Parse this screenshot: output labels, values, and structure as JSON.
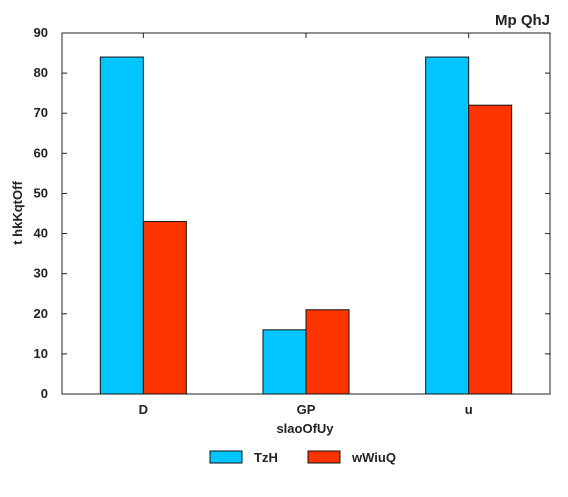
{
  "chart_data": {
    "type": "bar",
    "title": "Mp QhJ",
    "xlabel": "slaoOfUy",
    "ylabel": "t  hkKqtOff",
    "categories": [
      "D",
      "GP",
      "u"
    ],
    "series": [
      {
        "name": "TzH",
        "values": [
          84,
          16,
          84
        ],
        "color": "#00c5ff"
      },
      {
        "name": "wWiuQ",
        "values": [
          43,
          21,
          72
        ],
        "color": "#ff3300"
      }
    ],
    "ylim": [
      0,
      90
    ],
    "yticks": [
      "0",
      "10",
      "20",
      "30",
      "40",
      "50",
      "60",
      "70",
      "80",
      "90"
    ],
    "grid": false,
    "legend_position": "bottom-center"
  }
}
